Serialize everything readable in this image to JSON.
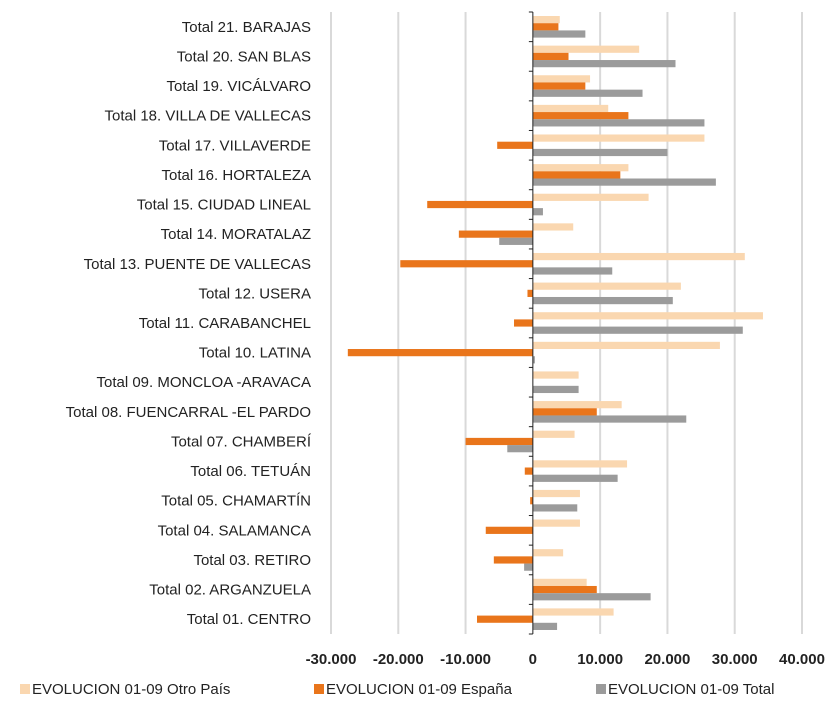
{
  "chart_data": {
    "type": "bar",
    "orientation": "horizontal",
    "title": "",
    "xlabel": "",
    "ylabel": "",
    "xlim": [
      -30000,
      40000
    ],
    "x_ticks": [
      -30000,
      -20000,
      -10000,
      0,
      10000,
      20000,
      30000,
      40000
    ],
    "x_tick_labels": [
      "-30.000",
      "-20.000",
      "-10.000",
      "0",
      "10.000",
      "20.000",
      "30.000",
      "40.000"
    ],
    "grid": "vertical",
    "legend_position": "bottom",
    "categories": [
      "Total 01. CENTRO",
      "Total 02. ARGANZUELA",
      "Total 03. RETIRO",
      "Total 04. SALAMANCA",
      "Total 05. CHAMARTÍN",
      "Total 06. TETUÁN",
      "Total 07. CHAMBERÍ",
      "Total 08. FUENCARRAL -EL PARDO",
      "Total 09. MONCLOA -ARAVACA",
      "Total 10. LATINA",
      "Total 11. CARABANCHEL",
      "Total 12. USERA",
      "Total 13. PUENTE DE VALLECAS",
      "Total 14. MORATALAZ",
      "Total 15. CIUDAD LINEAL",
      "Total 16. HORTALEZA",
      "Total 17. VILLAVERDE",
      "Total 18. VILLA DE VALLECAS",
      "Total 19. VICÁLVARO",
      "Total 20. SAN BLAS",
      "Total 21. BARAJAS"
    ],
    "series": [
      {
        "name": "EVOLUCION 01-09 Otro País",
        "color": "#fad7b0",
        "values": [
          12000,
          8000,
          4500,
          7000,
          7000,
          14000,
          6200,
          13200,
          6800,
          27800,
          34200,
          22000,
          31500,
          6000,
          17200,
          14200,
          25500,
          11200,
          8500,
          15800,
          4000
        ]
      },
      {
        "name": "EVOLUCION 01-09 España",
        "color": "#e9751b",
        "values": [
          -8300,
          9500,
          -5800,
          -7000,
          -400,
          -1200,
          -10000,
          9500,
          0,
          -27500,
          -2800,
          -800,
          -19700,
          -11000,
          -15700,
          13000,
          -5300,
          14200,
          7800,
          5300,
          3800
        ]
      },
      {
        "name": "EVOLUCION 01-09 Total",
        "color": "#9b9b9b",
        "values": [
          3600,
          17500,
          -1300,
          0,
          6600,
          12600,
          -3800,
          22800,
          6800,
          300,
          31200,
          20800,
          11800,
          -5000,
          1500,
          27200,
          20000,
          25500,
          16300,
          21200,
          7800
        ]
      }
    ]
  }
}
